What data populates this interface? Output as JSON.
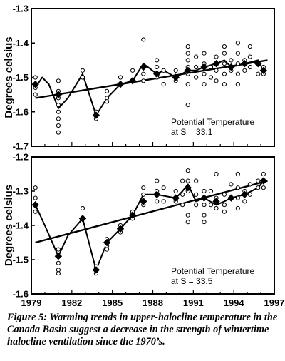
{
  "chart_data": [
    {
      "type": "line",
      "ylabel": "Degrees celsius",
      "ylim": [
        -1.7,
        -1.3
      ],
      "yticks": [
        "-1.3",
        "-1.4",
        "-1.5",
        "-1.6",
        "-1.7"
      ],
      "xlim": [
        1979,
        1997
      ],
      "xticks": [],
      "grid": false,
      "annotation": [
        "Potential Temperature",
        "at S = 33.1"
      ],
      "series": [
        {
          "role": "individual observations",
          "points": [
            [
              1979.3,
              -1.5
            ],
            [
              1979.3,
              -1.52
            ],
            [
              1979.3,
              -1.53
            ],
            [
              1979.3,
              -1.55
            ],
            [
              1981.0,
              -1.51
            ],
            [
              1981.0,
              -1.54
            ],
            [
              1981.0,
              -1.56
            ],
            [
              1981.0,
              -1.58
            ],
            [
              1981.0,
              -1.6
            ],
            [
              1981.0,
              -1.62
            ],
            [
              1981.0,
              -1.64
            ],
            [
              1981.0,
              -1.66
            ],
            [
              1982.8,
              -1.48
            ],
            [
              1982.8,
              -1.5
            ],
            [
              1983.8,
              -1.6
            ],
            [
              1983.8,
              -1.62
            ],
            [
              1984.6,
              -1.54
            ],
            [
              1984.6,
              -1.56
            ],
            [
              1984.6,
              -1.57
            ],
            [
              1985.6,
              -1.5
            ],
            [
              1985.6,
              -1.52
            ],
            [
              1986.5,
              -1.48
            ],
            [
              1986.5,
              -1.51
            ],
            [
              1987.3,
              -1.39
            ],
            [
              1987.3,
              -1.47
            ],
            [
              1987.3,
              -1.49
            ],
            [
              1987.3,
              -1.51
            ],
            [
              1988.3,
              -1.45
            ],
            [
              1988.3,
              -1.47
            ],
            [
              1988.3,
              -1.5
            ],
            [
              1988.8,
              -1.48
            ],
            [
              1988.8,
              -1.52
            ],
            [
              1989.7,
              -1.48
            ],
            [
              1989.7,
              -1.51
            ],
            [
              1990.6,
              -1.41
            ],
            [
              1990.6,
              -1.43
            ],
            [
              1990.6,
              -1.45
            ],
            [
              1990.6,
              -1.47
            ],
            [
              1990.6,
              -1.49
            ],
            [
              1990.6,
              -1.52
            ],
            [
              1990.6,
              -1.58
            ],
            [
              1991.2,
              -1.44
            ],
            [
              1991.2,
              -1.47
            ],
            [
              1991.2,
              -1.5
            ],
            [
              1991.8,
              -1.43
            ],
            [
              1991.8,
              -1.46
            ],
            [
              1991.8,
              -1.49
            ],
            [
              1991.8,
              -1.52
            ],
            [
              1992.3,
              -1.47
            ],
            [
              1992.3,
              -1.5
            ],
            [
              1992.7,
              -1.44
            ],
            [
              1992.7,
              -1.48
            ],
            [
              1992.7,
              -1.51
            ],
            [
              1993.3,
              -1.41
            ],
            [
              1993.3,
              -1.43
            ],
            [
              1993.3,
              -1.46
            ],
            [
              1993.3,
              -1.49
            ],
            [
              1993.3,
              -1.52
            ],
            [
              1993.8,
              -1.45
            ],
            [
              1993.8,
              -1.48
            ],
            [
              1994.3,
              -1.4
            ],
            [
              1994.3,
              -1.43
            ],
            [
              1994.3,
              -1.46
            ],
            [
              1994.3,
              -1.49
            ],
            [
              1994.3,
              -1.52
            ],
            [
              1994.8,
              -1.45
            ],
            [
              1994.8,
              -1.48
            ],
            [
              1995.2,
              -1.41
            ],
            [
              1995.2,
              -1.44
            ],
            [
              1995.2,
              -1.47
            ],
            [
              1995.8,
              -1.46
            ],
            [
              1995.8,
              -1.49
            ],
            [
              1996.2,
              -1.47
            ],
            [
              1996.2,
              -1.49
            ]
          ]
        },
        {
          "role": "yearly mean",
          "points": [
            [
              1979.3,
              -1.52
            ],
            [
              1981.0,
              -1.55
            ],
            [
              1983.8,
              -1.61
            ],
            [
              1985.6,
              -1.52
            ],
            [
              1986.5,
              -1.51
            ],
            [
              1987.3,
              -1.47
            ],
            [
              1988.3,
              -1.49
            ],
            [
              1989.7,
              -1.5
            ],
            [
              1990.6,
              -1.48
            ],
            [
              1991.8,
              -1.47
            ],
            [
              1992.7,
              -1.46
            ],
            [
              1993.8,
              -1.47
            ],
            [
              1994.8,
              -1.46
            ],
            [
              1995.8,
              -1.46
            ],
            [
              1996.2,
              -1.48
            ]
          ]
        },
        {
          "role": "smoothed curve",
          "points": [
            [
              1979.3,
              -1.53
            ],
            [
              1979.8,
              -1.5
            ],
            [
              1980.3,
              -1.52
            ],
            [
              1981.0,
              -1.59
            ],
            [
              1981.7,
              -1.56
            ],
            [
              1982.8,
              -1.49
            ],
            [
              1983.8,
              -1.61
            ],
            [
              1984.6,
              -1.56
            ],
            [
              1985.6,
              -1.52
            ],
            [
              1986.5,
              -1.51
            ],
            [
              1987.3,
              -1.46
            ],
            [
              1988.3,
              -1.49
            ],
            [
              1988.8,
              -1.48
            ],
            [
              1989.7,
              -1.5
            ],
            [
              1990.6,
              -1.48
            ],
            [
              1991.2,
              -1.48
            ],
            [
              1991.8,
              -1.47
            ],
            [
              1992.7,
              -1.46
            ],
            [
              1993.3,
              -1.45
            ],
            [
              1993.8,
              -1.47
            ],
            [
              1994.8,
              -1.46
            ],
            [
              1995.8,
              -1.45
            ],
            [
              1996.2,
              -1.48
            ]
          ]
        },
        {
          "role": "linear trend",
          "points": [
            [
              1979.3,
              -1.56
            ],
            [
              1996.5,
              -1.45
            ]
          ]
        }
      ]
    },
    {
      "type": "line",
      "ylabel": "Degrees celsius",
      "ylim": [
        -1.6,
        -1.2
      ],
      "yticks": [
        "-1.2",
        "-1.3",
        "-1.4",
        "-1.5",
        "-1.6"
      ],
      "xlim": [
        1979,
        1997
      ],
      "xticks": [
        "1979",
        "1982",
        "1985",
        "1988",
        "1991",
        "1994",
        "1997"
      ],
      "grid": false,
      "annotation": [
        "Potential Temperature",
        "at S = 33.5"
      ],
      "series": [
        {
          "role": "individual observations",
          "points": [
            [
              1979.3,
              -1.29
            ],
            [
              1979.3,
              -1.32
            ],
            [
              1979.3,
              -1.34
            ],
            [
              1979.3,
              -1.36
            ],
            [
              1981.0,
              -1.47
            ],
            [
              1981.0,
              -1.49
            ],
            [
              1981.0,
              -1.51
            ],
            [
              1981.0,
              -1.53
            ],
            [
              1981.0,
              -1.54
            ],
            [
              1982.8,
              -1.35
            ],
            [
              1982.8,
              -1.38
            ],
            [
              1983.8,
              -1.52
            ],
            [
              1983.8,
              -1.54
            ],
            [
              1984.6,
              -1.44
            ],
            [
              1984.6,
              -1.46
            ],
            [
              1984.6,
              -1.47
            ],
            [
              1985.6,
              -1.4
            ],
            [
              1985.6,
              -1.42
            ],
            [
              1986.5,
              -1.36
            ],
            [
              1986.5,
              -1.38
            ],
            [
              1987.3,
              -1.29
            ],
            [
              1987.3,
              -1.31
            ],
            [
              1987.3,
              -1.34
            ],
            [
              1988.3,
              -1.27
            ],
            [
              1988.3,
              -1.3
            ],
            [
              1988.3,
              -1.33
            ],
            [
              1988.8,
              -1.29
            ],
            [
              1988.8,
              -1.33
            ],
            [
              1989.7,
              -1.3
            ],
            [
              1989.7,
              -1.33
            ],
            [
              1990.2,
              -1.27
            ],
            [
              1990.2,
              -1.31
            ],
            [
              1990.2,
              -1.34
            ],
            [
              1990.6,
              -1.24
            ],
            [
              1990.6,
              -1.27
            ],
            [
              1990.6,
              -1.3
            ],
            [
              1990.6,
              -1.37
            ],
            [
              1990.6,
              -1.39
            ],
            [
              1991.2,
              -1.27
            ],
            [
              1991.2,
              -1.31
            ],
            [
              1991.2,
              -1.34
            ],
            [
              1991.8,
              -1.3
            ],
            [
              1991.8,
              -1.34
            ],
            [
              1991.8,
              -1.37
            ],
            [
              1991.8,
              -1.39
            ],
            [
              1992.3,
              -1.3
            ],
            [
              1992.3,
              -1.34
            ],
            [
              1992.7,
              -1.25
            ],
            [
              1992.7,
              -1.32
            ],
            [
              1992.7,
              -1.35
            ],
            [
              1993.3,
              -1.31
            ],
            [
              1993.3,
              -1.34
            ],
            [
              1993.3,
              -1.36
            ],
            [
              1993.8,
              -1.28
            ],
            [
              1993.8,
              -1.32
            ],
            [
              1994.3,
              -1.25
            ],
            [
              1994.3,
              -1.29
            ],
            [
              1994.3,
              -1.32
            ],
            [
              1994.3,
              -1.35
            ],
            [
              1994.8,
              -1.3
            ],
            [
              1994.8,
              -1.33
            ],
            [
              1995.2,
              -1.28
            ],
            [
              1995.2,
              -1.31
            ],
            [
              1995.8,
              -1.27
            ],
            [
              1995.8,
              -1.29
            ],
            [
              1996.2,
              -1.25
            ],
            [
              1996.2,
              -1.27
            ],
            [
              1996.2,
              -1.29
            ]
          ]
        },
        {
          "role": "yearly mean",
          "points": [
            [
              1979.3,
              -1.34
            ],
            [
              1981.0,
              -1.49
            ],
            [
              1982.8,
              -1.38
            ],
            [
              1983.8,
              -1.53
            ],
            [
              1984.6,
              -1.45
            ],
            [
              1985.6,
              -1.41
            ],
            [
              1986.5,
              -1.37
            ],
            [
              1987.3,
              -1.33
            ],
            [
              1988.3,
              -1.31
            ],
            [
              1989.7,
              -1.32
            ],
            [
              1990.6,
              -1.29
            ],
            [
              1991.8,
              -1.32
            ],
            [
              1992.7,
              -1.33
            ],
            [
              1993.8,
              -1.32
            ],
            [
              1994.8,
              -1.31
            ],
            [
              1996.2,
              -1.27
            ]
          ]
        },
        {
          "role": "smoothed curve",
          "points": [
            [
              1979.3,
              -1.34
            ],
            [
              1980.0,
              -1.4
            ],
            [
              1981.0,
              -1.49
            ],
            [
              1981.7,
              -1.43
            ],
            [
              1982.8,
              -1.38
            ],
            [
              1983.8,
              -1.53
            ],
            [
              1984.6,
              -1.45
            ],
            [
              1985.6,
              -1.41
            ],
            [
              1986.5,
              -1.37
            ],
            [
              1987.3,
              -1.31
            ],
            [
              1988.3,
              -1.31
            ],
            [
              1989.7,
              -1.32
            ],
            [
              1990.2,
              -1.3
            ],
            [
              1990.6,
              -1.28
            ],
            [
              1991.2,
              -1.33
            ],
            [
              1991.8,
              -1.32
            ],
            [
              1992.7,
              -1.34
            ],
            [
              1993.3,
              -1.33
            ],
            [
              1993.8,
              -1.32
            ],
            [
              1994.8,
              -1.31
            ],
            [
              1995.8,
              -1.29
            ],
            [
              1996.2,
              -1.27
            ]
          ]
        },
        {
          "role": "linear trend",
          "points": [
            [
              1979.3,
              -1.45
            ],
            [
              1996.5,
              -1.27
            ]
          ]
        }
      ]
    }
  ],
  "caption": "Figure 5: Warming trends in upper-halocline temperature in the Canada Basin suggest a decrease in the strength of wintertime halocline ventilation since the 1970’s."
}
